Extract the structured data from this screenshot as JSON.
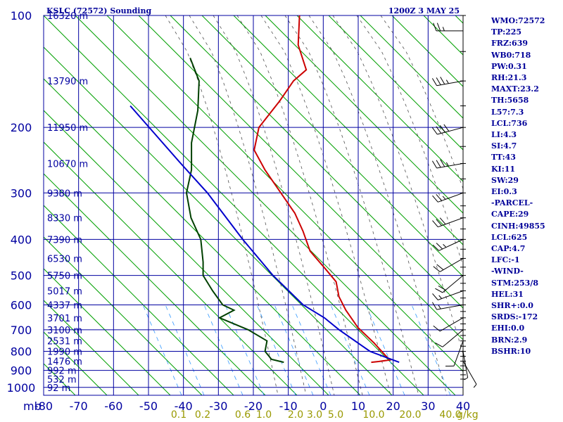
{
  "title_left": "KSLC (72572) Sounding",
  "title_right": "1200Z  3 MAY 25",
  "pressure_unit": "mb",
  "mixing_unit": "g/kg",
  "colors": {
    "frame": "#0000a0",
    "text": "#000099",
    "adiabat": "#00a000",
    "temperature": "#cc0000",
    "dewpoint": "#004000",
    "parcel": "#0000cc",
    "moist_adiabat": "#808080",
    "mixing_ratio": "#3399ff",
    "mixing_label": "#999900"
  },
  "stats": [
    "WMO:72572",
    "TP:225",
    "FRZ:639",
    "WB0:718",
    "PW:0.31",
    "RH:21.3",
    "MAXT:23.2",
    "TH:5658",
    "L57:7.3",
    "LCL:736",
    "LI:4.3",
    "SI:4.7",
    "TT:43",
    "KI:11",
    "SW:29",
    "EI:0.3",
    "-PARCEL-",
    "CAPE:29",
    "CINH:49855",
    "LCL:625",
    "CAP:4.7",
    "LFC:-1",
    "-WIND-",
    "STM:253/8",
    "HEL:31",
    "SHR+:0.0",
    "SRDS:-172",
    "EHI:0.0",
    "BRN:2.9",
    "BSHR:10"
  ],
  "chart_data": {
    "type": "line",
    "title": "KSLC (72572) Sounding",
    "subtitle": "1200Z  3 MAY 25",
    "xlabel": "",
    "ylabel": "mb",
    "x_ticks": [
      "-80",
      "-70",
      "-60",
      "-50",
      "-40",
      "-30",
      "-20",
      "-10",
      "0",
      "10",
      "20",
      "30",
      "40"
    ],
    "y_ticks": [
      "100",
      "200",
      "300",
      "400",
      "500",
      "600",
      "700",
      "800",
      "900",
      "1000"
    ],
    "height_labels": [
      {
        "p": 100,
        "label": "16320 m"
      },
      {
        "p": 150,
        "label": "13790 m"
      },
      {
        "p": 200,
        "label": "11950 m"
      },
      {
        "p": 250,
        "label": "10670 m"
      },
      {
        "p": 300,
        "label": "9380 m"
      },
      {
        "p": 350,
        "label": "8330 m"
      },
      {
        "p": 400,
        "label": "7390 m"
      },
      {
        "p": 450,
        "label": "6530 m"
      },
      {
        "p": 500,
        "label": "5750 m"
      },
      {
        "p": 550,
        "label": "5017 m"
      },
      {
        "p": 600,
        "label": "4337 m"
      },
      {
        "p": 650,
        "label": "3701 m"
      },
      {
        "p": 700,
        "label": "3100 m"
      },
      {
        "p": 750,
        "label": "2531 m"
      },
      {
        "p": 800,
        "label": "1990 m"
      },
      {
        "p": 850,
        "label": "1476 m"
      },
      {
        "p": 900,
        "label": "992 m"
      },
      {
        "p": 950,
        "label": "532 m"
      },
      {
        "p": 1000,
        "label": "92 m"
      }
    ],
    "mixing_ratio_labels": [
      "0.1",
      "0.2",
      "0.6",
      "1.0",
      "2.0",
      "3.0",
      "5.0",
      "10.0",
      "20.0",
      "40.0"
    ],
    "series": [
      {
        "key": "temperature",
        "points": [
          {
            "p": 100,
            "t": -62
          },
          {
            "p": 120,
            "t": -58
          },
          {
            "p": 140,
            "t": -52
          },
          {
            "p": 150,
            "t": -54
          },
          {
            "p": 170,
            "t": -55
          },
          {
            "p": 200,
            "t": -57
          },
          {
            "p": 230,
            "t": -55
          },
          {
            "p": 260,
            "t": -49
          },
          {
            "p": 300,
            "t": -41
          },
          {
            "p": 340,
            "t": -34
          },
          {
            "p": 380,
            "t": -29
          },
          {
            "p": 430,
            "t": -24
          },
          {
            "p": 480,
            "t": -17
          },
          {
            "p": 520,
            "t": -12
          },
          {
            "p": 570,
            "t": -9
          },
          {
            "p": 620,
            "t": -5
          },
          {
            "p": 690,
            "t": 1
          },
          {
            "p": 760,
            "t": 8
          },
          {
            "p": 820,
            "t": 13
          },
          {
            "p": 844,
            "t": 15
          },
          {
            "p": 852,
            "t": 12
          },
          {
            "p": 856,
            "t": 10
          }
        ]
      },
      {
        "key": "dewpoint",
        "points": [
          {
            "p": 130,
            "t": -87
          },
          {
            "p": 150,
            "t": -81
          },
          {
            "p": 180,
            "t": -77
          },
          {
            "p": 220,
            "t": -74
          },
          {
            "p": 260,
            "t": -70
          },
          {
            "p": 300,
            "t": -68
          },
          {
            "p": 350,
            "t": -63
          },
          {
            "p": 400,
            "t": -57
          },
          {
            "p": 460,
            "t": -53
          },
          {
            "p": 500,
            "t": -51
          },
          {
            "p": 550,
            "t": -46
          },
          {
            "p": 600,
            "t": -41
          },
          {
            "p": 620,
            "t": -37
          },
          {
            "p": 650,
            "t": -40
          },
          {
            "p": 700,
            "t": -30
          },
          {
            "p": 750,
            "t": -23
          },
          {
            "p": 800,
            "t": -22
          },
          {
            "p": 840,
            "t": -19
          },
          {
            "p": 856,
            "t": -15
          }
        ]
      },
      {
        "key": "parcel",
        "points": [
          {
            "p": 175,
            "t": -97
          },
          {
            "p": 250,
            "t": -74
          },
          {
            "p": 300,
            "t": -62
          },
          {
            "p": 400,
            "t": -45
          },
          {
            "p": 500,
            "t": -31
          },
          {
            "p": 600,
            "t": -18
          },
          {
            "p": 650,
            "t": -10
          },
          {
            "p": 700,
            "t": -4
          },
          {
            "p": 800,
            "t": 8
          },
          {
            "p": 856,
            "t": 18
          }
        ]
      }
    ],
    "wind_barbs": [
      {
        "p": 110,
        "dir": 270,
        "spd": 25
      },
      {
        "p": 150,
        "dir": 260,
        "spd": 35
      },
      {
        "p": 200,
        "dir": 255,
        "spd": 40
      },
      {
        "p": 250,
        "dir": 260,
        "spd": 35
      },
      {
        "p": 300,
        "dir": 250,
        "spd": 25
      },
      {
        "p": 350,
        "dir": 250,
        "spd": 30
      },
      {
        "p": 400,
        "dir": 245,
        "spd": 25
      },
      {
        "p": 450,
        "dir": 240,
        "spd": 20
      },
      {
        "p": 500,
        "dir": 230,
        "spd": 20
      },
      {
        "p": 550,
        "dir": 250,
        "spd": 15
      },
      {
        "p": 600,
        "dir": 260,
        "spd": 15
      },
      {
        "p": 650,
        "dir": 240,
        "spd": 10
      },
      {
        "p": 700,
        "dir": 230,
        "spd": 10
      },
      {
        "p": 750,
        "dir": 200,
        "spd": 10
      },
      {
        "p": 800,
        "dir": 170,
        "spd": 5
      },
      {
        "p": 850,
        "dir": 150,
        "spd": 5
      }
    ]
  }
}
